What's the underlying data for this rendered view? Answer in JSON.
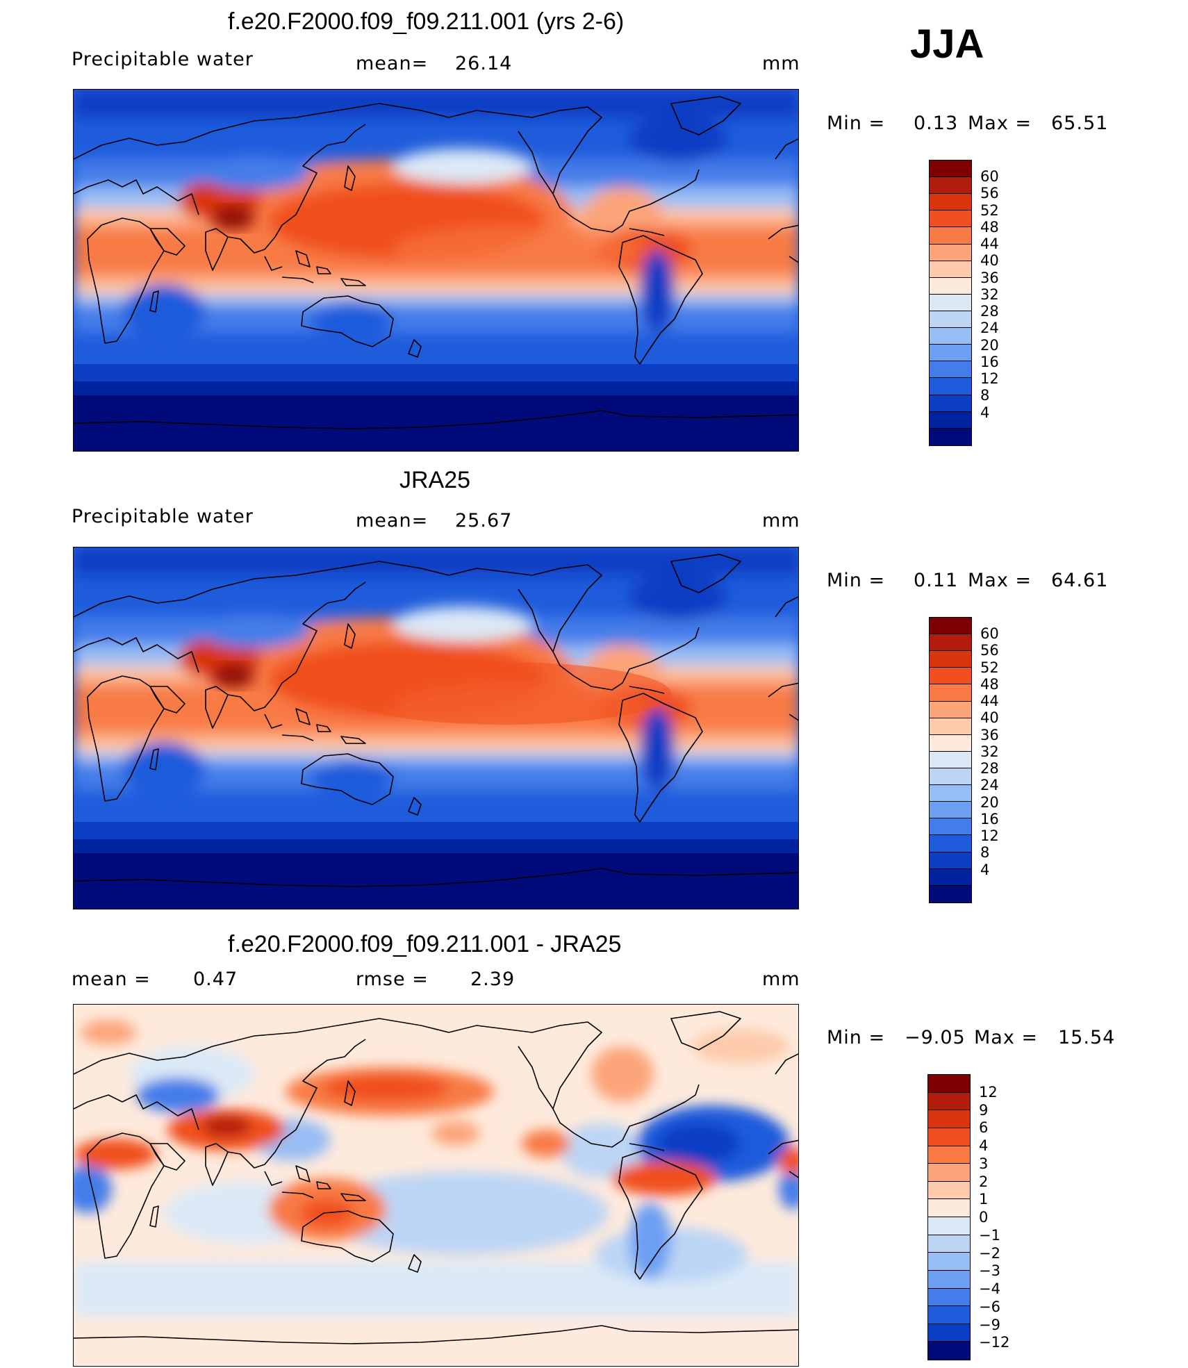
{
  "season": "JJA",
  "panels": [
    {
      "title": "f.e20.F2000.f09_f09.211.001 (yrs 2-6)",
      "left_label": "Precipitable  water",
      "center_label": "mean=",
      "center_value": "26.14",
      "units": "mm",
      "min_label": "Min  =",
      "min_value": "0.13",
      "max_label": "Max  =",
      "max_value": "65.51",
      "colorbar_ticks": [
        "60",
        "56",
        "52",
        "48",
        "44",
        "40",
        "36",
        "32",
        "28",
        "24",
        "20",
        "16",
        "12",
        "8",
        "4"
      ]
    },
    {
      "title": "JRA25",
      "left_label": "Precipitable  water",
      "center_label": "mean=",
      "center_value": "25.67",
      "units": "mm",
      "min_label": "Min  =",
      "min_value": "0.11",
      "max_label": "Max  =",
      "max_value": "64.61",
      "colorbar_ticks": [
        "60",
        "56",
        "52",
        "48",
        "44",
        "40",
        "36",
        "32",
        "28",
        "24",
        "20",
        "16",
        "12",
        "8",
        "4"
      ]
    },
    {
      "title": "f.e20.F2000.f09_f09.211.001 - JRA25",
      "left_label": "mean  =",
      "left_value": "0.47",
      "center_label": "rmse  =",
      "center_value": "2.39",
      "units": "mm",
      "min_label": "Min  =",
      "min_value": "−9.05",
      "max_label": "Max  =",
      "max_value": "15.54",
      "colorbar_ticks": [
        "12",
        "9",
        "6",
        "4",
        "3",
        "2",
        "1",
        "0",
        "−1",
        "−2",
        "−3",
        "−4",
        "−6",
        "−9",
        "−12"
      ]
    }
  ],
  "colors": {
    "field_scale": [
      "#7f0000",
      "#b21d0e",
      "#d9360f",
      "#f0501f",
      "#f87a45",
      "#fca47a",
      "#fdcbab",
      "#feeadc",
      "#dbe9f7",
      "#bcd5f5",
      "#97bdf5",
      "#6d9ff2",
      "#447de9",
      "#1f5cdc",
      "#0b3ec4",
      "#00239f",
      "#000a78"
    ],
    "diff_scale": [
      "#7f0000",
      "#b21d0e",
      "#d9360f",
      "#f0501f",
      "#f87a45",
      "#fca47a",
      "#fdcbab",
      "#feeadc",
      "#dbe9f7",
      "#bcd5f5",
      "#97bdf5",
      "#6d9ff2",
      "#447de9",
      "#1f5cdc",
      "#0b3ec4",
      "#000a78"
    ]
  }
}
